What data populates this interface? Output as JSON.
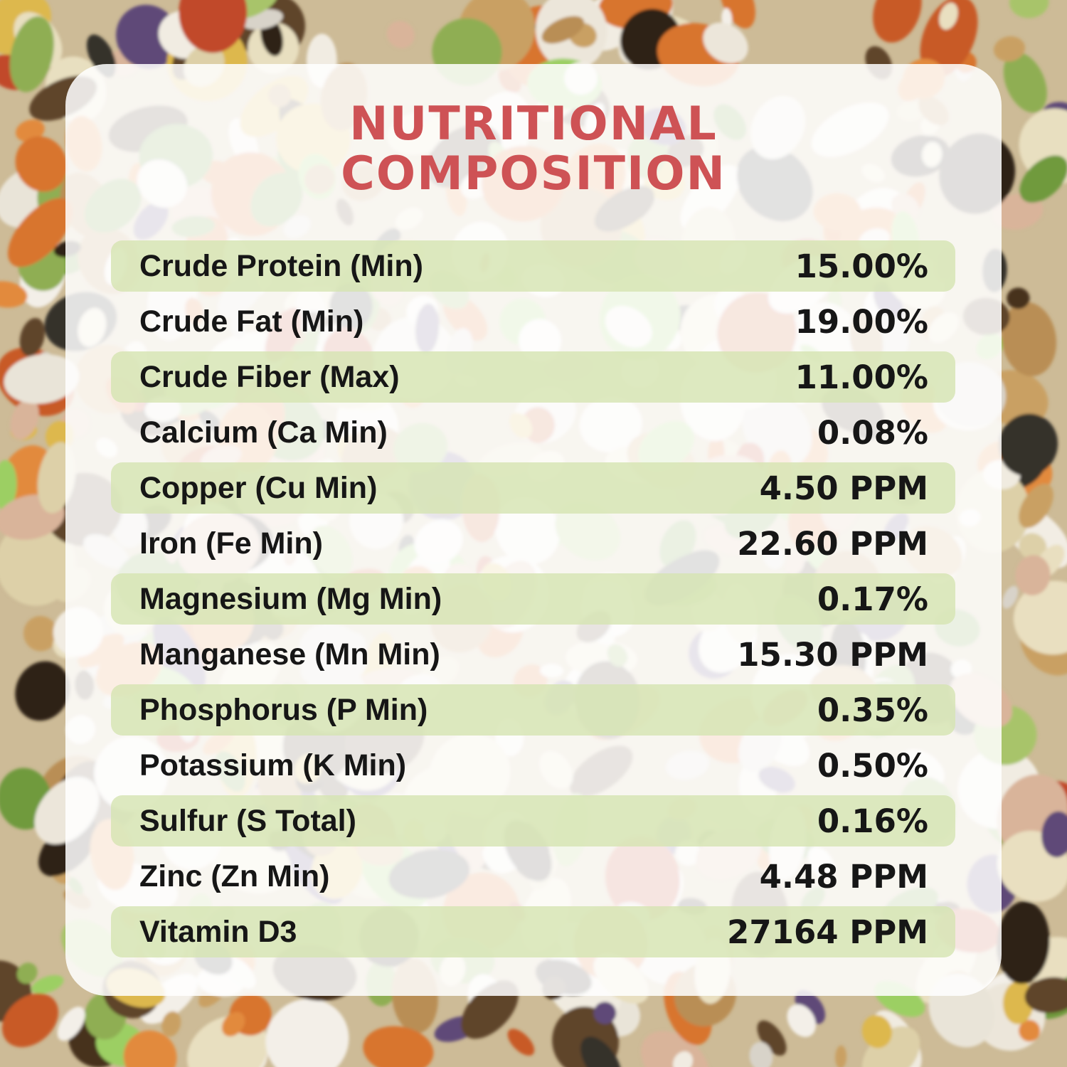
{
  "title": {
    "line1": "NUTRITIONAL",
    "line2": "COMPOSITION"
  },
  "colors": {
    "title_red": "#ce5255",
    "band_green": "rgba(214,228,178,0.82)",
    "panel_white": "rgba(255,255,255,0.86)",
    "text_dark": "#161616"
  },
  "table": {
    "rows": [
      {
        "label": "Crude Protein (Min)",
        "value": "15.00%"
      },
      {
        "label": "Crude Fat (Min)",
        "value": "19.00%"
      },
      {
        "label": "Crude Fiber (Max)",
        "value": "11.00%"
      },
      {
        "label": "Calcium (Ca Min)",
        "value": "0.08%"
      },
      {
        "label": "Copper (Cu Min)",
        "value": "4.50 PPM"
      },
      {
        "label": "Iron (Fe Min)",
        "value": "22.60 PPM"
      },
      {
        "label": "Magnesium (Mg Min)",
        "value": "0.17%"
      },
      {
        "label": "Manganese (Mn Min)",
        "value": "15.30 PPM"
      },
      {
        "label": "Phosphorus (P Min)",
        "value": "0.35%"
      },
      {
        "label": "Potassium (K Min)",
        "value": "0.50%"
      },
      {
        "label": "Sulfur (S Total)",
        "value": "0.16%"
      },
      {
        "label": "Zinc (Zn Min)",
        "value": "4.48 PPM"
      },
      {
        "label": "Vitamin D3",
        "value": "27164 PPM"
      }
    ]
  },
  "background": {
    "description": "photo of mixed bird seed: coconut chips, pumpkin seeds, dried carrot, green peas, raisins, nuts",
    "palette": [
      "#f2ede4",
      "#e9e4d8",
      "#f0ebe0",
      "#e9dfc0",
      "#ddd0a8",
      "#d8d3c9",
      "#e8dfc0",
      "#f1ece2",
      "#d8742f",
      "#e28a3c",
      "#c85a26",
      "#c14a2c",
      "#8fae52",
      "#a8c46a",
      "#9ccf63",
      "#6f9a3e",
      "#46321e",
      "#5f452a",
      "#2f2417",
      "#35302a",
      "#c9a064",
      "#b98e54",
      "#ddb84e",
      "#5f4a78",
      "#d9b49a",
      "#ece6da",
      "#f3efe8"
    ]
  }
}
